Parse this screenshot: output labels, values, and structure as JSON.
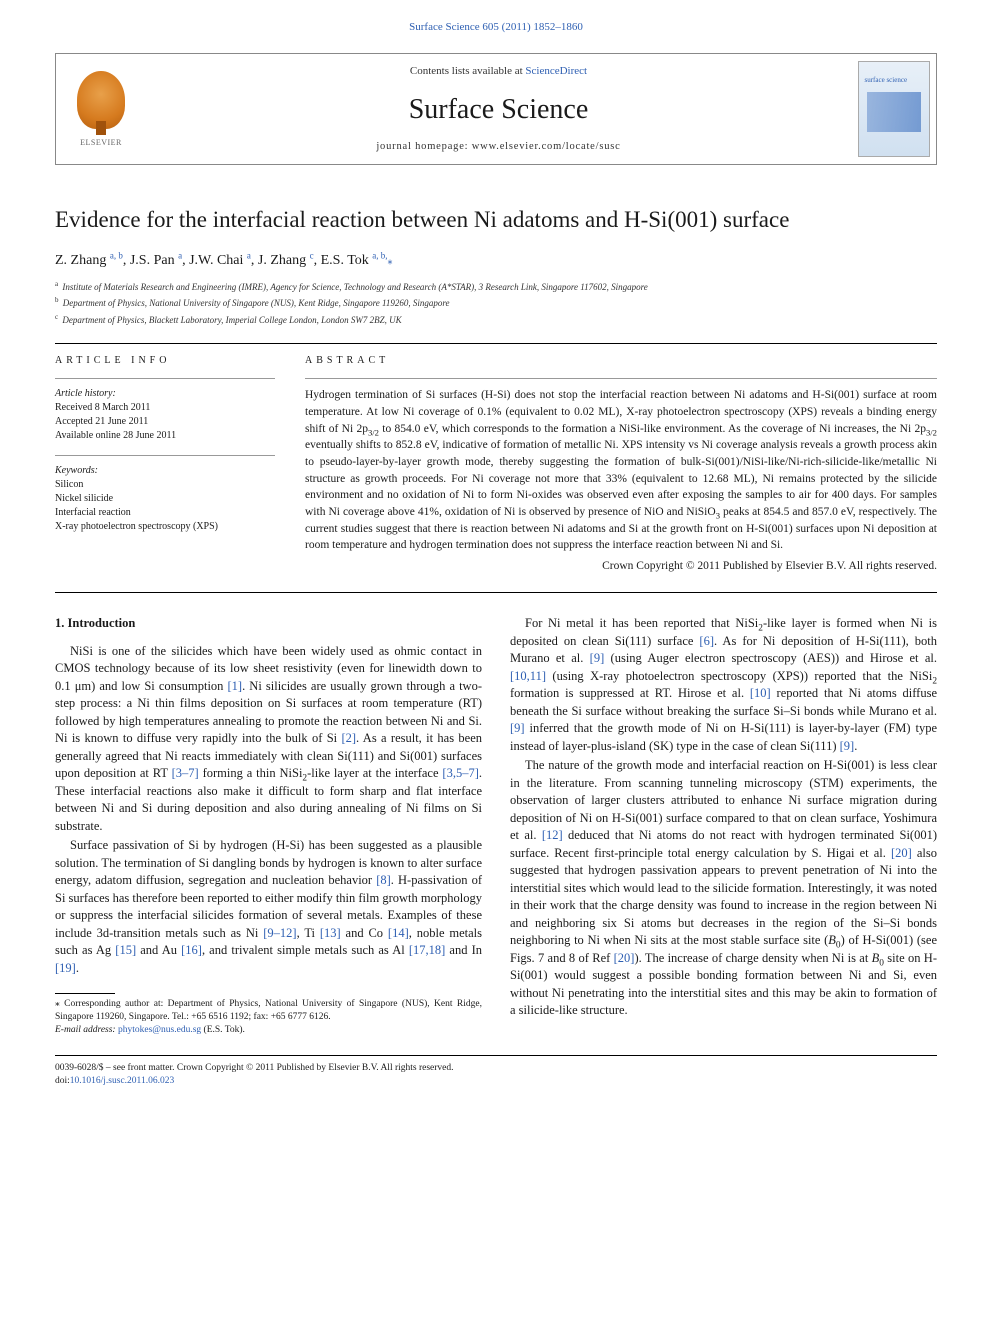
{
  "journal_ref_link": "Surface Science 605 (2011) 1852–1860",
  "header": {
    "contents_prefix": "Contents lists available at ",
    "contents_link": "ScienceDirect",
    "journal_title": "Surface Science",
    "homepage": "journal homepage: www.elsevier.com/locate/susc",
    "elsevier": "ELSEVIER",
    "cover_label": "surface science"
  },
  "title": "Evidence for the interfacial reaction between Ni adatoms and H-Si(001) surface",
  "authors_html": "Z. Zhang <sup>a, b</sup>, J.S. Pan <sup>a</sup>, J.W. Chai <sup>a</sup>, J. Zhang <sup>c</sup>, E.S. Tok <sup>a, b,</sup><span class='star-sup'>⁎</span>",
  "affiliations": [
    {
      "sup": "a",
      "text": "Institute of Materials Research and Engineering (IMRE), Agency for Science, Technology and Research (A*STAR), 3 Research Link, Singapore 117602, Singapore"
    },
    {
      "sup": "b",
      "text": "Department of Physics, National University of Singapore (NUS), Kent Ridge, Singapore 119260, Singapore"
    },
    {
      "sup": "c",
      "text": "Department of Physics, Blackett Laboratory, Imperial College London, London SW7 2BZ, UK"
    }
  ],
  "article_info": {
    "heading": "ARTICLE INFO",
    "history_label": "Article history:",
    "history": [
      "Received 8 March 2011",
      "Accepted 21 June 2011",
      "Available online 28 June 2011"
    ],
    "keywords_label": "Keywords:",
    "keywords": [
      "Silicon",
      "Nickel silicide",
      "Interfacial reaction",
      "X-ray photoelectron spectroscopy (XPS)"
    ]
  },
  "abstract": {
    "heading": "ABSTRACT",
    "text": "Hydrogen termination of Si surfaces (H-Si) does not stop the interfacial reaction between Ni adatoms and H-Si(001) surface at room temperature. At low Ni coverage of 0.1% (equivalent to 0.02 ML), X-ray photoelectron spectroscopy (XPS) reveals a binding energy shift of Ni 2p3/2 to 854.0 eV, which corresponds to the formation a NiSi-like environment. As the coverage of Ni increases, the Ni 2p3/2 eventually shifts to 852.8 eV, indicative of formation of metallic Ni. XPS intensity vs Ni coverage analysis reveals a growth process akin to pseudo-layer-by-layer growth mode, thereby suggesting the formation of bulk-Si(001)/NiSi-like/Ni-rich-silicide-like/metallic Ni structure as growth proceeds. For Ni coverage not more that 33% (equivalent to 12.68 ML), Ni remains protected by the silicide environment and no oxidation of Ni to form Ni-oxides was observed even after exposing the samples to air for 400 days. For samples with Ni coverage above 41%, oxidation of Ni is observed by presence of NiO and NiSiO3 peaks at 854.5 and 857.0 eV, respectively. The current studies suggest that there is reaction between Ni adatoms and Si at the growth front on H-Si(001) surfaces upon Ni deposition at room temperature and hydrogen termination does not suppress the interface reaction between Ni and Si.",
    "copyright": "Crown Copyright © 2011 Published by Elsevier B.V. All rights reserved."
  },
  "intro_heading": "1. Introduction",
  "corr": {
    "text1": "⁎ Corresponding author at: Department of Physics, National University of Singapore (NUS), Kent Ridge, Singapore 119260, Singapore. Tel.: +65 6516 1192; fax: +65 6777 6126.",
    "email_label": "E-mail address: ",
    "email": "phytokes@nus.edu.sg",
    "email_suffix": " (E.S. Tok)."
  },
  "footer": {
    "line1": "0039-6028/$ – see front matter. Crown Copyright © 2011 Published by Elsevier B.V. All rights reserved.",
    "doi_prefix": "doi:",
    "doi": "10.1016/j.susc.2011.06.023"
  },
  "colors": {
    "link": "#2e5fb2",
    "text": "#1a1a1a",
    "elsevier_orange": "#d67b1f"
  }
}
